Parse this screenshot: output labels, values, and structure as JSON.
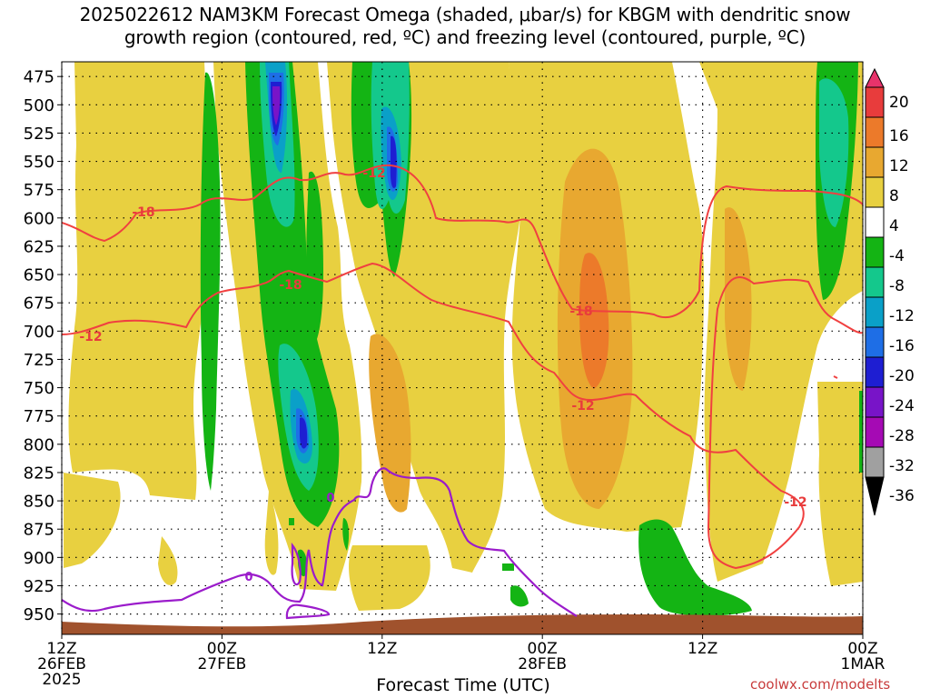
{
  "title_line1": "2025022612 NAM3KM Forecast Omega (shaded, μbar/s) for KBGM with dendritic snow",
  "title_line2": "growth region (contoured, red, ºC) and freezing level (contoured, purple, ºC)",
  "credit": "coolwx.com/modelts",
  "chart_data": {
    "type": "heatmap",
    "title": "2025022612 NAM3KM Forecast Omega (shaded, μbar/s) for KBGM with dendritic snow growth region (contoured, red, ºC) and freezing level (contoured, purple, ºC)",
    "xlabel": "Forecast Time (UTC)",
    "ylabel": "",
    "x_range_hours": [
      0,
      60
    ],
    "x_ticks": [
      {
        "hour": 0,
        "lines": [
          "12Z",
          "26FEB",
          "2025"
        ]
      },
      {
        "hour": 12,
        "lines": [
          "00Z",
          "27FEB"
        ]
      },
      {
        "hour": 24,
        "lines": [
          "12Z"
        ]
      },
      {
        "hour": 36,
        "lines": [
          "00Z",
          "28FEB"
        ]
      },
      {
        "hour": 48,
        "lines": [
          "12Z"
        ]
      },
      {
        "hour": 60,
        "lines": [
          "00Z",
          "1MAR"
        ]
      }
    ],
    "y_ticks": [
      475,
      500,
      525,
      550,
      575,
      600,
      625,
      650,
      675,
      700,
      725,
      750,
      775,
      800,
      825,
      850,
      875,
      900,
      925,
      950
    ],
    "y_range_hpa": [
      462,
      968
    ],
    "grid": true,
    "colorbar": {
      "labels": [
        20,
        16,
        12,
        8,
        4,
        -4,
        -8,
        -12,
        -16,
        -20,
        -24,
        -28,
        -32,
        -36
      ],
      "colors": [
        "#e8336b",
        "#e83c3c",
        "#ec7a2a",
        "#e8a830",
        "#e8d040",
        "#ffffff",
        "#14b414",
        "#14c88c",
        "#0aa0c8",
        "#1e6ee6",
        "#1e1ed2",
        "#7814c8",
        "#a50ab4",
        "#a0a0a0",
        "#000000"
      ]
    },
    "contour_labels": {
      "dgz": [
        "-18",
        "-12",
        "-18",
        "-12",
        "-18",
        "-12",
        "-12"
      ],
      "freezing": [
        "0",
        "0"
      ]
    }
  }
}
